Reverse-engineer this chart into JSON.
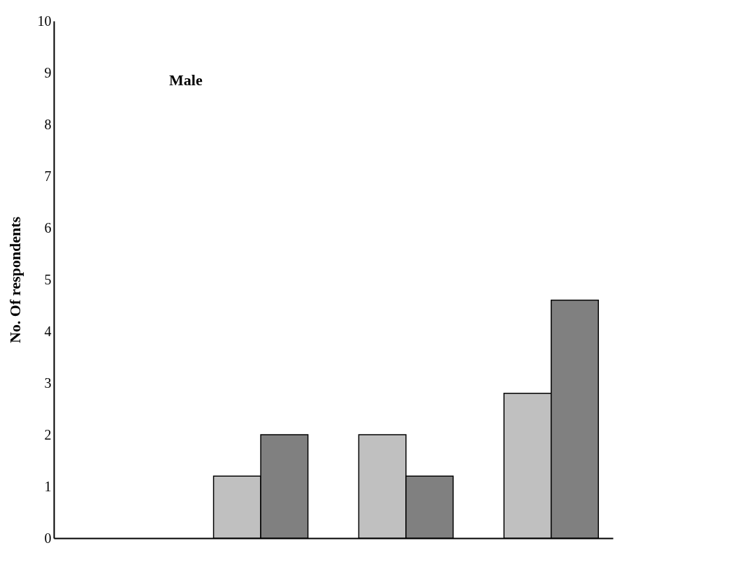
{
  "chart_data": {
    "type": "bar",
    "categories": [
      null,
      null,
      null,
      null
    ],
    "series": [
      {
        "color": "#c0c0c0",
        "values": [
          null,
          1.2,
          2.0,
          2.8
        ]
      },
      {
        "color": "#808080",
        "values": [
          null,
          2.0,
          1.2,
          4.6
        ]
      }
    ],
    "ylabel": "No. Of respondents",
    "ylim": [
      0,
      10
    ],
    "yticks": [
      0,
      1,
      2,
      3,
      4,
      5,
      6,
      7,
      8,
      9,
      10
    ],
    "annotations": [
      "Male"
    ],
    "tick_labels": "y",
    "grid": false,
    "legend": false
  }
}
